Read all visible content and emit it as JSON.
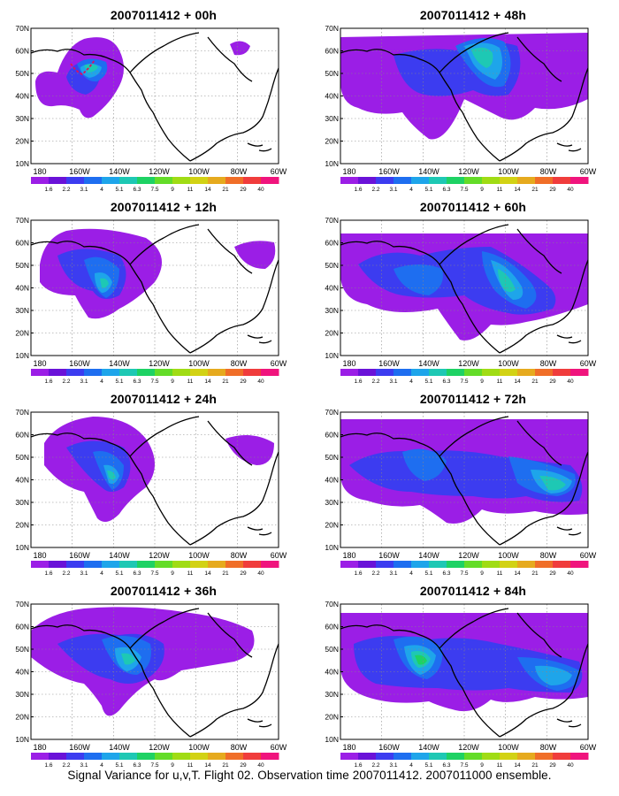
{
  "panels": [
    {
      "id": "p00",
      "title": "2007011412 + 00h"
    },
    {
      "id": "p48",
      "title": "2007011412 + 48h"
    },
    {
      "id": "p12",
      "title": "2007011412 + 12h"
    },
    {
      "id": "p60",
      "title": "2007011412 + 60h"
    },
    {
      "id": "p24",
      "title": "2007011412 + 24h"
    },
    {
      "id": "p72",
      "title": "2007011412 + 72h"
    },
    {
      "id": "p36",
      "title": "2007011412 + 36h"
    },
    {
      "id": "p84",
      "title": "2007011412 + 84h"
    }
  ],
  "lat_ticks": [
    "10N",
    "20N",
    "30N",
    "40N",
    "50N",
    "60N",
    "70N"
  ],
  "lon_ticks": [
    "180",
    "160W",
    "140W",
    "120W",
    "100W",
    "80W",
    "60W"
  ],
  "colorbar": {
    "labels": [
      "1.6",
      "2.2",
      "3.1",
      "4",
      "5.1",
      "6.3",
      "7.5",
      "9",
      "11",
      "14",
      "21",
      "29",
      "40"
    ],
    "colors": [
      "#9b1ee6",
      "#6a12d8",
      "#3c3cf0",
      "#1e6ef0",
      "#1ea5ea",
      "#1ec8b4",
      "#1ed264",
      "#64dc28",
      "#a0dc14",
      "#d2d214",
      "#e6aa1e",
      "#f06e28",
      "#f03c3c",
      "#f0147d"
    ]
  },
  "caption": "Signal Variance for u,v,T. Flight 02. Observation time 2007011412. 2007011000 ensemble."
}
